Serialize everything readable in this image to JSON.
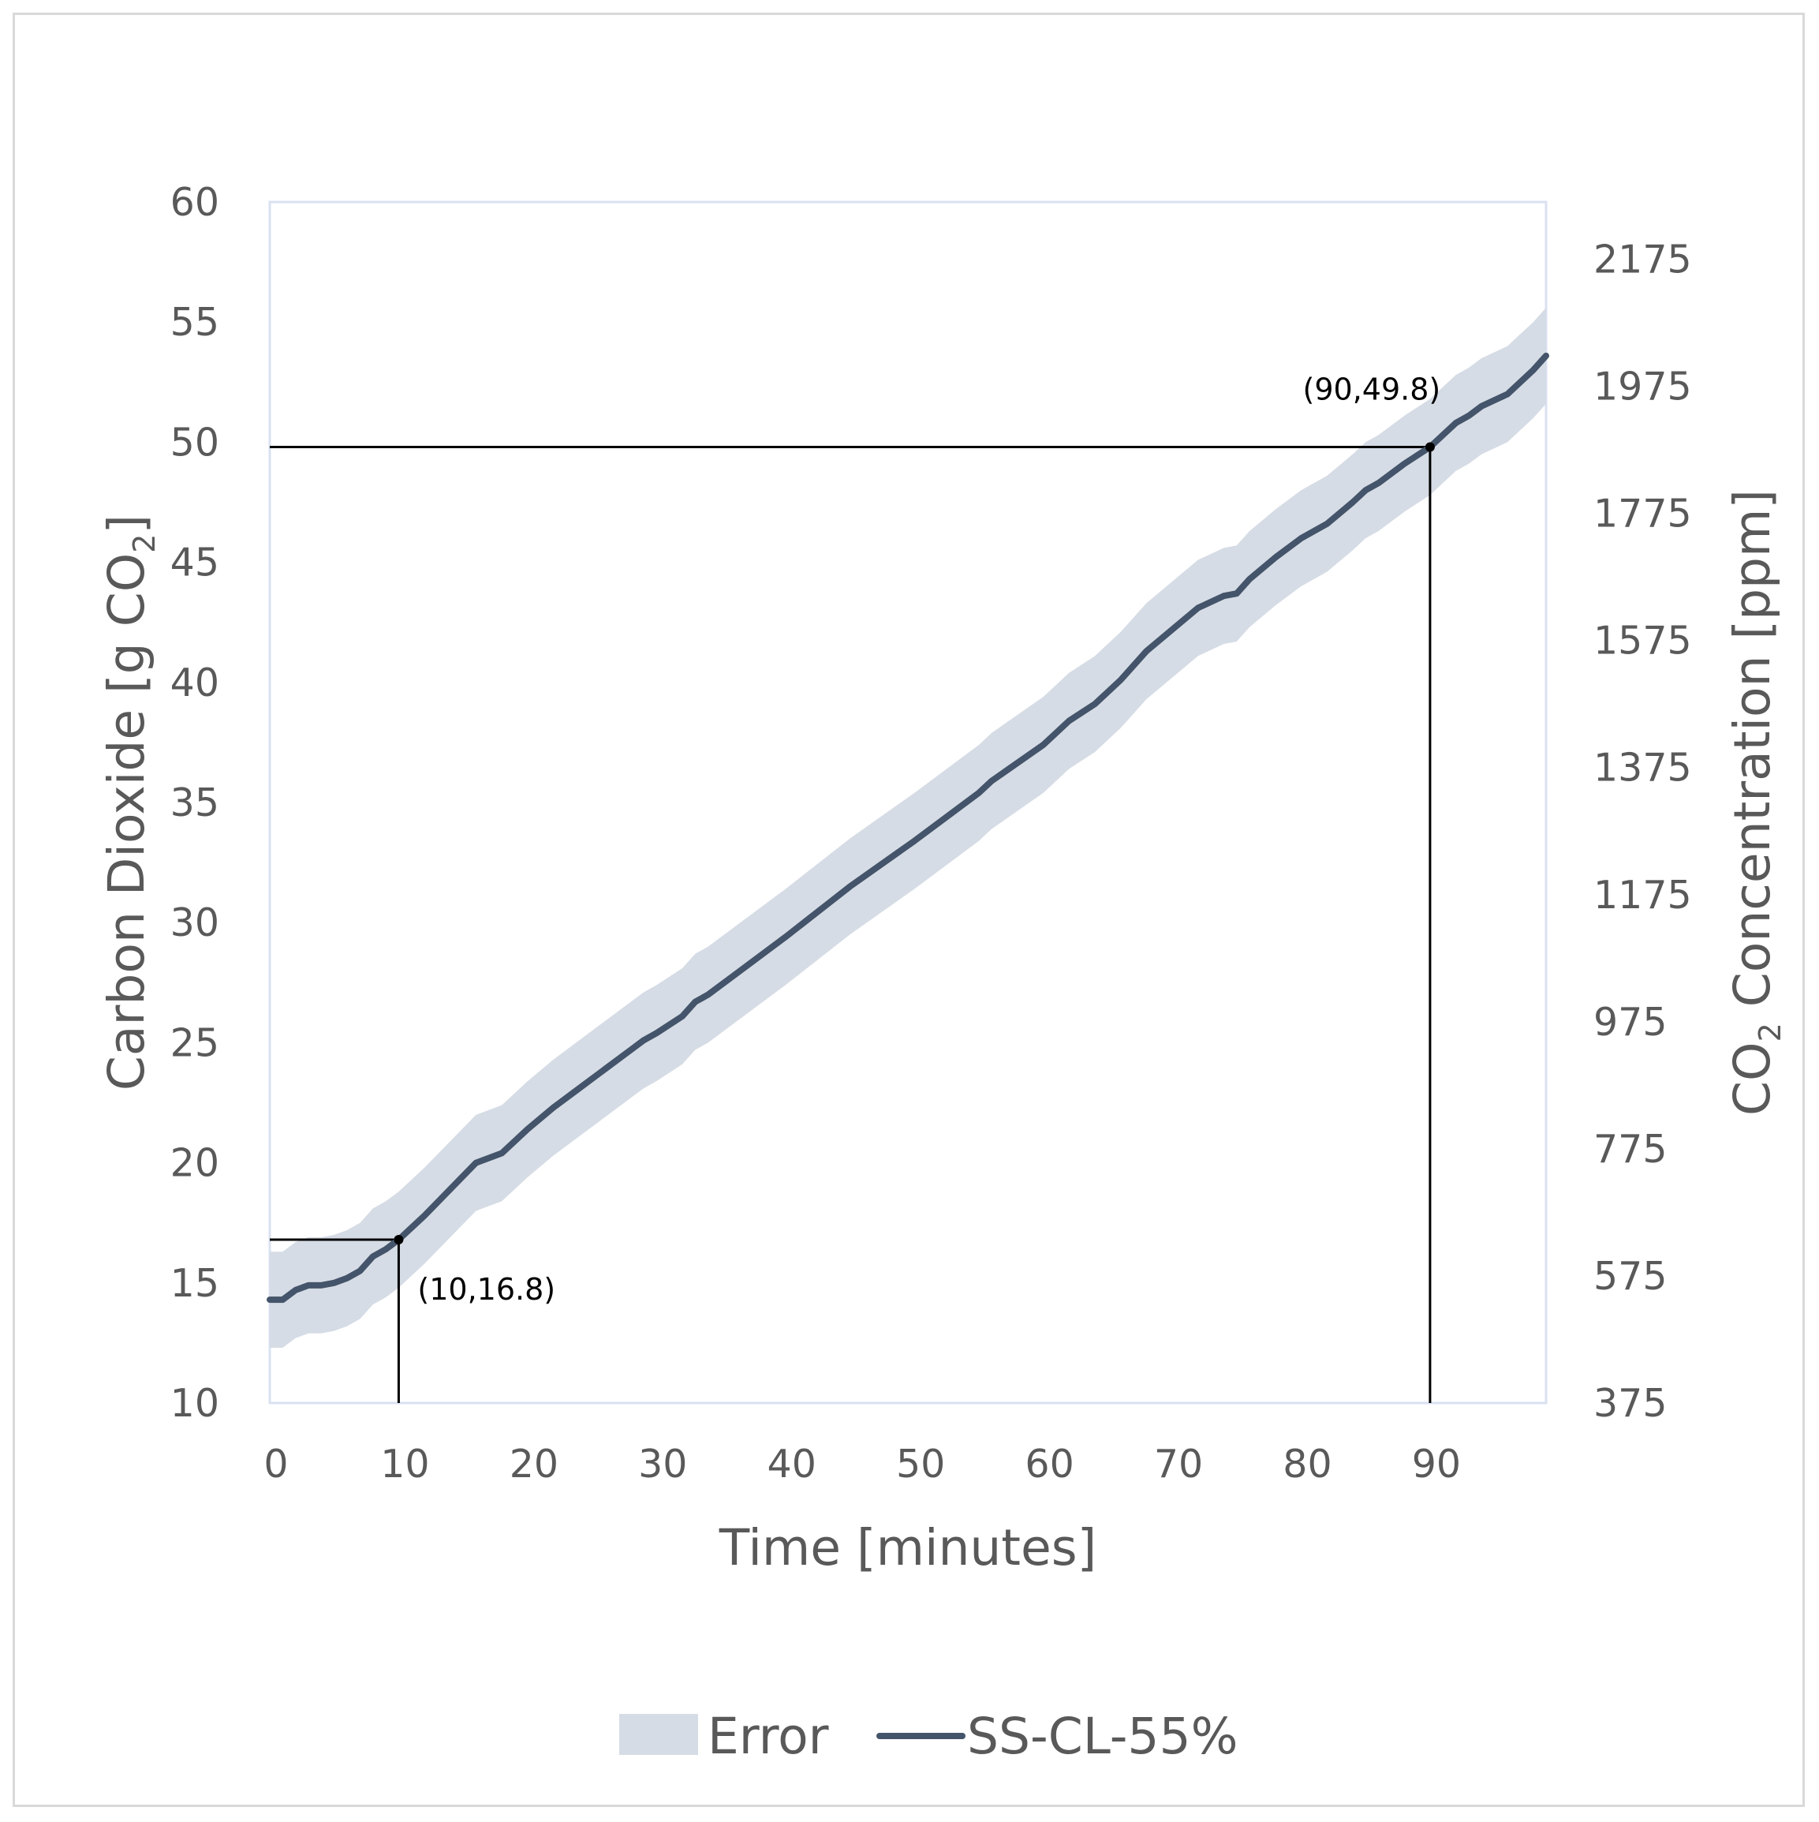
{
  "chart_data": {
    "type": "line",
    "x_axis": {
      "label": "Time [minutes]",
      "range": [
        0,
        99
      ],
      "ticks": [
        0,
        10,
        20,
        30,
        40,
        50,
        60,
        70,
        80,
        90
      ],
      "tick_labels": [
        "0",
        "10",
        "20",
        "30",
        "40",
        "50",
        "60",
        "70",
        "80",
        "90"
      ]
    },
    "y_axis_left": {
      "label_main": "Carbon Dioxide [g CO",
      "label_sub": "2",
      "label_end": "]",
      "range": [
        10,
        60
      ],
      "ticks": [
        10,
        15,
        20,
        25,
        30,
        35,
        40,
        45,
        50,
        55,
        60
      ],
      "tick_labels": [
        "10",
        "15",
        "20",
        "25",
        "30",
        "35",
        "40",
        "45",
        "50",
        "55",
        "60"
      ]
    },
    "y_axis_right": {
      "label_main": "CO",
      "label_sub": "2",
      "label_end": " Concentration [ppm]",
      "range": [
        375,
        2265
      ],
      "ticks": [
        375,
        575,
        775,
        975,
        1175,
        1375,
        1575,
        1775,
        1975,
        2175
      ],
      "tick_labels": [
        "375",
        "575",
        "775",
        "975",
        "1175",
        "1375",
        "1575",
        "1775",
        "1975",
        "2175"
      ]
    },
    "series": [
      {
        "name": "SS-CL-55%",
        "color": "#44546a",
        "x": [
          0,
          1,
          2,
          3,
          4,
          5,
          6,
          7,
          8,
          9,
          10,
          12,
          14,
          16,
          18,
          19,
          20,
          22,
          24,
          26,
          28,
          29,
          30,
          32,
          33,
          34,
          36,
          40,
          45,
          50,
          55,
          56,
          60,
          62,
          64,
          66,
          68,
          70,
          72,
          74,
          75,
          76,
          78,
          80,
          81,
          82,
          84,
          85,
          86,
          88,
          90,
          92,
          93,
          94,
          96,
          97,
          98,
          99
        ],
        "y": [
          14.3,
          14.3,
          14.7,
          14.9,
          14.9,
          15.0,
          15.2,
          15.5,
          16.1,
          16.4,
          16.8,
          17.8,
          18.9,
          20.0,
          20.4,
          20.9,
          21.4,
          22.3,
          23.1,
          23.9,
          24.7,
          25.1,
          25.4,
          26.1,
          26.7,
          27.0,
          27.8,
          29.4,
          31.5,
          33.4,
          35.4,
          35.9,
          37.4,
          38.4,
          39.1,
          40.1,
          41.3,
          42.2,
          43.1,
          43.6,
          43.7,
          44.3,
          45.2,
          46.0,
          46.3,
          46.6,
          47.5,
          48.0,
          48.3,
          49.1,
          49.8,
          50.8,
          51.1,
          51.5,
          52.0,
          52.5,
          53.0,
          53.6
        ]
      }
    ],
    "error_band": {
      "name": "Error",
      "color": "#d6dce5",
      "half_width": 2.0
    },
    "annotations": [
      {
        "x": 10,
        "y": 16.8,
        "label": "(10,16.8)",
        "position": "below-right"
      },
      {
        "x": 90,
        "y": 49.8,
        "label": "(90,49.8)",
        "position": "above-left"
      }
    ],
    "legend": {
      "position": "bottom",
      "entries": [
        {
          "label": "Error",
          "kind": "band"
        },
        {
          "label": "SS-CL-55%",
          "kind": "line"
        }
      ]
    },
    "grid": false
  }
}
